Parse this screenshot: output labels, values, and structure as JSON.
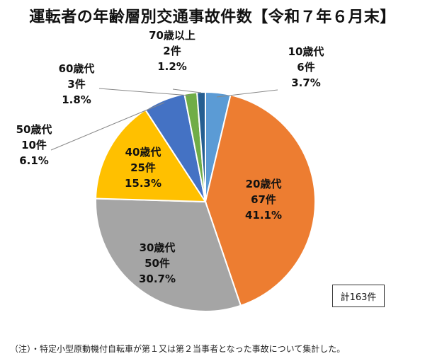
{
  "title": "運転者の年齢層別交通事故件数【令和７年６月末】",
  "total_label": "計163件",
  "footnote": "（注）・特定小型原動機付自転車が第１又は第２当事者となった事故について集計した。",
  "chart_data": {
    "type": "pie",
    "title": "運転者の年齢層別交通事故件数【令和７年６月末】",
    "categories": [
      "10歳代",
      "20歳代",
      "30歳代",
      "40歳代",
      "50歳代",
      "60歳代",
      "70歳以上"
    ],
    "values": [
      6,
      67,
      50,
      25,
      10,
      3,
      2
    ],
    "count_labels": [
      "6件",
      "67件",
      "50件",
      "25件",
      "10件",
      "3件",
      "2件"
    ],
    "percent_labels": [
      "3.7%",
      "41.1%",
      "30.7%",
      "15.3%",
      "6.1%",
      "1.8%",
      "1.2%"
    ],
    "colors": [
      "#5b9bd5",
      "#ed7d31",
      "#a5a5a5",
      "#ffc000",
      "#4472c4",
      "#70ad47",
      "#255e91"
    ],
    "label_placement": [
      "outside",
      "inside",
      "inside",
      "inside",
      "outside",
      "outside",
      "outside"
    ],
    "total": 163
  }
}
